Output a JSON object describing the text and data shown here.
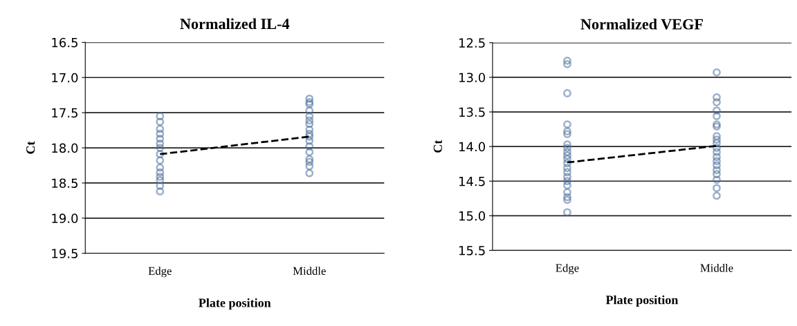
{
  "chart_data": [
    {
      "type": "scatter",
      "title": "Normalized IL-4",
      "xlabel": "Plate position",
      "ylabel": "Ct",
      "categories": [
        "Edge",
        "Middle"
      ],
      "ylim": [
        19.5,
        16.5
      ],
      "yticks": [
        16.5,
        {
          "value": 17,
          "label": "17.0"
        },
        17.5,
        {
          "value": 18,
          "label": "18.0"
        },
        18.5,
        {
          "value": 19,
          "label": "19.0"
        },
        19.5
      ],
      "grid": "y",
      "marker": "circle",
      "series": [
        {
          "type": "scatter",
          "color": "#4a6f9c",
          "x": [
            "Edge",
            "Edge",
            "Edge",
            "Edge",
            "Edge",
            "Edge",
            "Edge",
            "Edge",
            "Edge",
            "Edge",
            "Edge",
            "Edge",
            "Edge",
            "Edge",
            "Edge",
            "Middle",
            "Middle",
            "Middle",
            "Middle",
            "Middle",
            "Middle",
            "Middle",
            "Middle",
            "Middle",
            "Middle",
            "Middle",
            "Middle",
            "Middle",
            "Middle",
            "Middle",
            "Middle",
            "Middle"
          ],
          "values": [
            17.55,
            17.63,
            17.73,
            17.8,
            17.87,
            17.94,
            18.0,
            18.09,
            18.18,
            18.28,
            18.35,
            18.41,
            18.46,
            18.54,
            18.62,
            17.3,
            17.35,
            17.38,
            17.47,
            17.55,
            17.61,
            17.66,
            17.74,
            17.8,
            17.84,
            17.9,
            17.98,
            18.06,
            18.16,
            18.2,
            18.26,
            18.36
          ]
        },
        {
          "type": "line",
          "color": "#000000",
          "marker": "none",
          "line_style": "dashed",
          "values": [
            18.09,
            17.84
          ]
        }
      ]
    },
    {
      "type": "scatter",
      "title": "Normalized VEGF",
      "xlabel": "Plate position",
      "ylabel": "Ct",
      "categories": [
        "Edge",
        "Middle"
      ],
      "ylim": [
        15.5,
        12.5
      ],
      "yticks": [
        12.5,
        {
          "value": 13,
          "label": "13.0"
        },
        13.5,
        {
          "value": 14,
          "label": "14.0"
        },
        14.5,
        {
          "value": 15,
          "label": "15.0"
        },
        15.5
      ],
      "grid": "y",
      "marker": "circle",
      "series": [
        {
          "type": "scatter",
          "color": "#4a6f9c",
          "x": [
            "Edge",
            "Edge",
            "Edge",
            "Edge",
            "Edge",
            "Edge",
            "Edge",
            "Edge",
            "Edge",
            "Edge",
            "Edge",
            "Edge",
            "Edge",
            "Edge",
            "Edge",
            "Edge",
            "Edge",
            "Edge",
            "Edge",
            "Edge",
            "Edge",
            "Middle",
            "Middle",
            "Middle",
            "Middle",
            "Middle",
            "Middle",
            "Middle",
            "Middle",
            "Middle",
            "Middle",
            "Middle",
            "Middle",
            "Middle",
            "Middle",
            "Middle",
            "Middle",
            "Middle",
            "Middle",
            "Middle",
            "Middle"
          ],
          "values": [
            12.76,
            12.81,
            13.23,
            13.68,
            13.78,
            13.82,
            13.97,
            14.02,
            14.08,
            14.13,
            14.18,
            14.24,
            14.31,
            14.37,
            14.44,
            14.5,
            14.56,
            14.66,
            14.73,
            14.77,
            14.95,
            12.93,
            13.29,
            13.36,
            13.48,
            13.56,
            13.68,
            13.71,
            13.85,
            13.9,
            13.95,
            14.02,
            14.08,
            14.15,
            14.21,
            14.27,
            14.34,
            14.4,
            14.48,
            14.6,
            14.71
          ]
        },
        {
          "type": "line",
          "color": "#000000",
          "marker": "none",
          "line_style": "dashed",
          "values": [
            14.23,
            13.99
          ]
        }
      ]
    }
  ]
}
